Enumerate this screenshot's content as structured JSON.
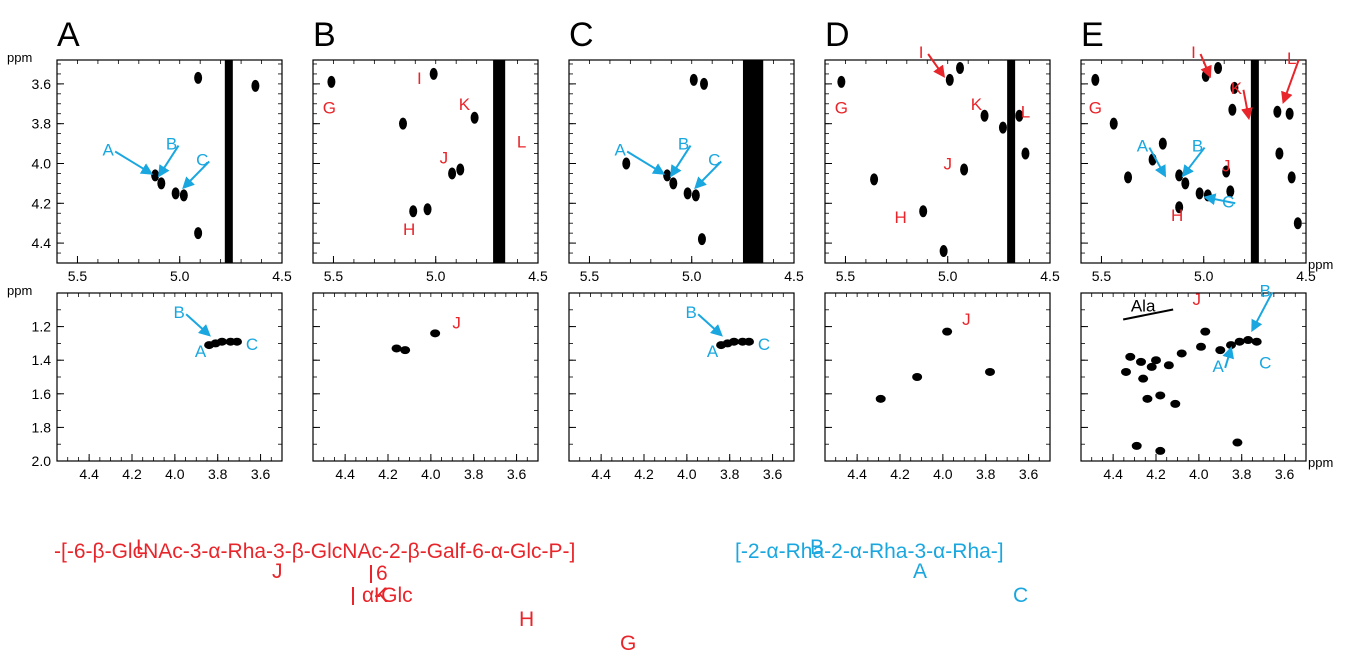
{
  "colors": {
    "red": "#e8252a",
    "blue": "#1aa7e0",
    "ink": "#000000"
  },
  "axis_unit": "ppm",
  "panels": [
    {
      "letter": "A",
      "top": {
        "x_ticks": [
          "5.5",
          "5.0",
          "4.5"
        ],
        "y_ticks": [
          "3.6",
          "3.8",
          "4.0",
          "4.2",
          "4.4"
        ],
        "xlim": [
          5.6,
          4.5
        ],
        "ylim": [
          3.48,
          4.5
        ],
        "cross_peaks": [
          [
            5.12,
            4.06
          ],
          [
            5.09,
            4.1
          ],
          [
            5.02,
            4.15
          ],
          [
            4.98,
            4.16
          ],
          [
            4.91,
            3.57
          ],
          [
            4.91,
            4.35
          ],
          [
            4.63,
            3.61
          ]
        ],
        "ridge_lines": [
          4.76
        ],
        "labels": [
          {
            "text": "A",
            "color": "blue",
            "x": 5.35,
            "y": 3.96,
            "tx": 5.14,
            "ty": 4.05
          },
          {
            "text": "B",
            "color": "blue",
            "x": 5.04,
            "y": 3.93,
            "tx": 5.1,
            "ty": 4.06
          },
          {
            "text": "C",
            "color": "blue",
            "x": 4.89,
            "y": 4.01,
            "tx": 4.98,
            "ty": 4.12
          }
        ]
      },
      "bottom": {
        "x_ticks": [
          "4.4",
          "4.2",
          "4.0",
          "3.8",
          "3.6"
        ],
        "y_ticks": [
          "1.2",
          "1.4",
          "1.6",
          "1.8",
          "2.0"
        ],
        "xlim": [
          4.55,
          3.5
        ],
        "ylim": [
          1.0,
          2.0
        ],
        "cross_peaks": [
          [
            3.84,
            1.31
          ],
          [
            3.81,
            1.3
          ],
          [
            3.78,
            1.29
          ],
          [
            3.74,
            1.29
          ],
          [
            3.71,
            1.29
          ]
        ],
        "labels": [
          {
            "text": "B",
            "color": "blue",
            "x": 3.98,
            "y": 1.15,
            "tx": 3.84,
            "ty": 1.25
          },
          {
            "text": "A",
            "color": "blue",
            "x": 3.88,
            "y": 1.38,
            "tx": null,
            "ty": null
          },
          {
            "text": "C",
            "color": "blue",
            "x": 3.64,
            "y": 1.34,
            "tx": null,
            "ty": null
          }
        ]
      }
    },
    {
      "letter": "B",
      "top": {
        "x_ticks": [
          "5.5",
          "5.0",
          "4.5"
        ],
        "y_ticks": [
          "3.6",
          "3.8",
          "4.0",
          "4.2",
          "4.4"
        ],
        "xlim": [
          5.6,
          4.5
        ],
        "ylim": [
          3.48,
          4.5
        ],
        "cross_peaks": [
          [
            5.51,
            3.59
          ],
          [
            5.01,
            3.55
          ],
          [
            4.81,
            3.77
          ],
          [
            4.92,
            4.05
          ],
          [
            5.11,
            4.24
          ],
          [
            5.16,
            3.8
          ],
          [
            5.04,
            4.23
          ],
          [
            4.88,
            4.03
          ]
        ],
        "ridge_lines": [
          4.7,
          4.68
        ],
        "labels": [
          {
            "text": "G",
            "color": "red",
            "x": 5.52,
            "y": 3.75,
            "tx": null,
            "ty": null
          },
          {
            "text": "I",
            "color": "red",
            "x": 5.08,
            "y": 3.6,
            "tx": null,
            "ty": null
          },
          {
            "text": "K",
            "color": "red",
            "x": 4.86,
            "y": 3.73,
            "tx": null,
            "ty": null
          },
          {
            "text": "L",
            "color": "red",
            "x": 4.58,
            "y": 3.92,
            "tx": null,
            "ty": null
          },
          {
            "text": "J",
            "color": "red",
            "x": 4.96,
            "y": 4.0,
            "tx": null,
            "ty": null
          },
          {
            "text": "H",
            "color": "red",
            "x": 5.13,
            "y": 4.36,
            "tx": null,
            "ty": null
          }
        ]
      },
      "bottom": {
        "x_ticks": [
          "4.4",
          "4.2",
          "4.0",
          "3.8",
          "3.6"
        ],
        "y_ticks": [
          "1.2",
          "1.4",
          "1.6",
          "1.8",
          "2.0"
        ],
        "xlim": [
          4.55,
          3.5
        ],
        "ylim": [
          1.0,
          2.0
        ],
        "cross_peaks": [
          [
            3.98,
            1.24
          ],
          [
            4.16,
            1.33
          ],
          [
            4.12,
            1.34
          ]
        ],
        "labels": [
          {
            "text": "J",
            "color": "red",
            "x": 3.88,
            "y": 1.21,
            "tx": null,
            "ty": null
          }
        ]
      }
    },
    {
      "letter": "C",
      "top": {
        "x_ticks": [
          "5.5",
          "5.0",
          "4.5"
        ],
        "y_ticks": [
          "3.6",
          "3.8",
          "4.0",
          "4.2",
          "4.4"
        ],
        "xlim": [
          5.6,
          4.5
        ],
        "ylim": [
          3.48,
          4.5
        ],
        "cross_peaks": [
          [
            5.12,
            4.06
          ],
          [
            5.09,
            4.1
          ],
          [
            5.02,
            4.15
          ],
          [
            4.98,
            4.16
          ],
          [
            4.99,
            3.58
          ],
          [
            4.94,
            3.6
          ],
          [
            5.32,
            4.0
          ],
          [
            4.95,
            4.38
          ]
        ],
        "ridge_lines": [
          4.73,
          4.7,
          4.67
        ],
        "labels": [
          {
            "text": "A",
            "color": "blue",
            "x": 5.35,
            "y": 3.96,
            "tx": 5.14,
            "ty": 4.05
          },
          {
            "text": "B",
            "color": "blue",
            "x": 5.04,
            "y": 3.93,
            "tx": 5.1,
            "ty": 4.06
          },
          {
            "text": "C",
            "color": "blue",
            "x": 4.89,
            "y": 4.01,
            "tx": 4.98,
            "ty": 4.12
          }
        ]
      },
      "bottom": {
        "x_ticks": [
          "4.4",
          "4.2",
          "4.0",
          "3.8",
          "3.6"
        ],
        "y_ticks": [
          "1.2",
          "1.4",
          "1.6",
          "1.8",
          "2.0"
        ],
        "xlim": [
          4.55,
          3.5
        ],
        "ylim": [
          1.0,
          2.0
        ],
        "cross_peaks": [
          [
            3.84,
            1.31
          ],
          [
            3.81,
            1.3
          ],
          [
            3.78,
            1.29
          ],
          [
            3.74,
            1.29
          ],
          [
            3.71,
            1.29
          ]
        ],
        "labels": [
          {
            "text": "B",
            "color": "blue",
            "x": 3.98,
            "y": 1.15,
            "tx": 3.84,
            "ty": 1.25
          },
          {
            "text": "A",
            "color": "blue",
            "x": 3.88,
            "y": 1.38,
            "tx": null,
            "ty": null
          },
          {
            "text": "C",
            "color": "blue",
            "x": 3.64,
            "y": 1.34,
            "tx": null,
            "ty": null
          }
        ]
      }
    },
    {
      "letter": "D",
      "top": {
        "x_ticks": [
          "5.5",
          "5.0",
          "4.5"
        ],
        "y_ticks": [
          "3.6",
          "3.8",
          "4.0",
          "4.2",
          "4.4"
        ],
        "xlim": [
          5.6,
          4.5
        ],
        "ylim": [
          3.48,
          4.5
        ],
        "cross_peaks": [
          [
            5.52,
            3.59
          ],
          [
            4.99,
            3.58
          ],
          [
            4.94,
            3.52
          ],
          [
            4.82,
            3.76
          ],
          [
            4.65,
            3.76
          ],
          [
            4.73,
            3.82
          ],
          [
            5.36,
            4.08
          ],
          [
            5.12,
            4.24
          ],
          [
            4.92,
            4.03
          ],
          [
            4.62,
            3.95
          ],
          [
            5.02,
            4.44
          ]
        ],
        "ridge_lines": [
          4.69
        ],
        "labels": [
          {
            "text": "G",
            "color": "red",
            "x": 5.52,
            "y": 3.75,
            "tx": null,
            "ty": null
          },
          {
            "text": "I",
            "color": "red",
            "x": 5.13,
            "y": 3.47,
            "tx": 5.02,
            "ty": 3.56
          },
          {
            "text": "K",
            "color": "red",
            "x": 4.86,
            "y": 3.73,
            "tx": null,
            "ty": null
          },
          {
            "text": "L",
            "color": "red",
            "x": 4.62,
            "y": 3.77,
            "tx": null,
            "ty": null
          },
          {
            "text": "J",
            "color": "red",
            "x": 5.0,
            "y": 4.03,
            "tx": null,
            "ty": null
          },
          {
            "text": "H",
            "color": "red",
            "x": 5.23,
            "y": 4.3,
            "tx": null,
            "ty": null
          }
        ]
      },
      "bottom": {
        "x_ticks": [
          "4.4",
          "4.2",
          "4.0",
          "3.8",
          "3.6"
        ],
        "y_ticks": [
          "1.2",
          "1.4",
          "1.6",
          "1.8",
          "2.0"
        ],
        "xlim": [
          4.55,
          3.5
        ],
        "ylim": [
          1.0,
          2.0
        ],
        "cross_peaks": [
          [
            3.98,
            1.23
          ],
          [
            4.29,
            1.63
          ],
          [
            3.78,
            1.47
          ],
          [
            4.12,
            1.5
          ]
        ],
        "labels": [
          {
            "text": "J",
            "color": "red",
            "x": 3.89,
            "y": 1.19,
            "tx": null,
            "ty": null
          }
        ]
      }
    },
    {
      "letter": "E",
      "top": {
        "x_ticks": [
          "5.5",
          "5.0",
          "4.5"
        ],
        "y_ticks": [
          "3.6",
          "3.8",
          "4.0",
          "4.2",
          "4.4"
        ],
        "xlim": [
          5.6,
          4.5
        ],
        "ylim": [
          3.48,
          4.5
        ],
        "cross_peaks": [
          [
            5.53,
            3.58
          ],
          [
            4.99,
            3.56
          ],
          [
            4.93,
            3.52
          ],
          [
            5.12,
            4.06
          ],
          [
            5.09,
            4.1
          ],
          [
            5.02,
            4.15
          ],
          [
            4.98,
            4.16
          ],
          [
            5.37,
            4.07
          ],
          [
            5.25,
            3.98
          ],
          [
            5.12,
            4.22
          ],
          [
            4.89,
            4.04
          ],
          [
            4.85,
            3.62
          ],
          [
            4.86,
            3.73
          ],
          [
            4.64,
            3.74
          ],
          [
            4.58,
            3.75
          ],
          [
            4.63,
            3.95
          ],
          [
            4.57,
            4.07
          ],
          [
            4.54,
            4.3
          ],
          [
            5.2,
            3.9
          ],
          [
            4.87,
            4.14
          ],
          [
            5.44,
            3.8
          ]
        ],
        "ridge_lines": [
          4.75
        ],
        "labels": [
          {
            "text": "G",
            "color": "red",
            "x": 5.53,
            "y": 3.75,
            "tx": null,
            "ty": null
          },
          {
            "text": "I",
            "color": "red",
            "x": 5.05,
            "y": 3.47,
            "tx": 4.97,
            "ty": 3.56
          },
          {
            "text": "K",
            "color": "red",
            "x": 4.84,
            "y": 3.65,
            "tx": 4.78,
            "ty": 3.77
          },
          {
            "text": "L",
            "color": "red",
            "x": 4.57,
            "y": 3.5,
            "tx": 4.61,
            "ty": 3.69
          },
          {
            "text": "J",
            "color": "red",
            "x": 4.89,
            "y": 4.04,
            "tx": null,
            "ty": null
          },
          {
            "text": "H",
            "color": "red",
            "x": 5.13,
            "y": 4.29,
            "tx": null,
            "ty": null
          },
          {
            "text": "A",
            "color": "blue",
            "x": 5.3,
            "y": 3.94,
            "tx": 5.19,
            "ty": 4.06
          },
          {
            "text": "B",
            "color": "blue",
            "x": 5.03,
            "y": 3.94,
            "tx": 5.1,
            "ty": 4.06
          },
          {
            "text": "C",
            "color": "blue",
            "x": 4.88,
            "y": 4.22,
            "tx": 4.99,
            "ty": 4.17
          }
        ]
      },
      "bottom": {
        "x_ticks": [
          "4.4",
          "4.2",
          "4.0",
          "3.8",
          "3.6"
        ],
        "y_ticks": [
          "1.2",
          "1.4",
          "1.6",
          "1.8",
          "2.0"
        ],
        "xlim": [
          4.55,
          3.5
        ],
        "ylim": [
          1.0,
          2.0
        ],
        "cross_peaks": [
          [
            4.32,
            1.38
          ],
          [
            4.27,
            1.41
          ],
          [
            4.22,
            1.44
          ],
          [
            4.34,
            1.47
          ],
          [
            4.26,
            1.51
          ],
          [
            4.2,
            1.4
          ],
          [
            4.24,
            1.63
          ],
          [
            4.18,
            1.61
          ],
          [
            4.14,
            1.43
          ],
          [
            4.08,
            1.36
          ],
          [
            3.97,
            1.23
          ],
          [
            3.9,
            1.34
          ],
          [
            3.85,
            1.31
          ],
          [
            3.81,
            1.29
          ],
          [
            3.77,
            1.28
          ],
          [
            3.73,
            1.29
          ],
          [
            4.29,
            1.91
          ],
          [
            3.82,
            1.89
          ],
          [
            4.11,
            1.66
          ],
          [
            3.99,
            1.32
          ],
          [
            4.18,
            1.94
          ]
        ],
        "labels": [
          {
            "text": "J",
            "color": "red",
            "x": 4.01,
            "y": 1.07,
            "tx": null,
            "ty": null
          },
          {
            "text": "B",
            "color": "blue",
            "x": 3.69,
            "y": 1.02,
            "tx": 3.75,
            "ty": 1.22
          },
          {
            "text": "A",
            "color": "blue",
            "x": 3.91,
            "y": 1.47,
            "tx": 3.85,
            "ty": 1.33
          },
          {
            "text": "C",
            "color": "blue",
            "x": 3.69,
            "y": 1.45,
            "tx": null,
            "ty": null
          },
          {
            "text": "Ala",
            "color": "black",
            "x": 4.26,
            "y": 1.11,
            "tx": null,
            "ty": null
          }
        ]
      }
    }
  ],
  "structure": {
    "red_letters": [
      "L",
      "J",
      "K",
      "H",
      "G"
    ],
    "red_chain": "-[-6-β-GlcNAc-3-α-Rha-3-β-GlcNAc-2-β-Galf-6-α-Glc-P-]",
    "branch_pos": "6",
    "branch_sugar": "α-Glc",
    "blue_letters": [
      "B",
      "A",
      "C"
    ],
    "blue_chain": "[-2-α-Rha-2-α-Rha-3-α-Rha-]"
  },
  "chart_data": [
    {
      "type": "scatter",
      "panel": "A",
      "region": "anomeric",
      "xlabel": "",
      "ylabel": "ppm",
      "xlim": [
        5.6,
        4.5
      ],
      "ylim": [
        4.5,
        3.48
      ]
    },
    {
      "type": "scatter",
      "panel": "A",
      "region": "methyl",
      "xlabel": "",
      "ylabel": "ppm",
      "xlim": [
        4.55,
        3.5
      ],
      "ylim": [
        2.0,
        1.0
      ]
    },
    {
      "type": "scatter",
      "panel": "B",
      "region": "anomeric",
      "xlim": [
        5.6,
        4.5
      ],
      "ylim": [
        4.5,
        3.48
      ]
    },
    {
      "type": "scatter",
      "panel": "B",
      "region": "methyl",
      "xlim": [
        4.55,
        3.5
      ],
      "ylim": [
        2.0,
        1.0
      ]
    },
    {
      "type": "scatter",
      "panel": "C",
      "region": "anomeric",
      "xlim": [
        5.6,
        4.5
      ],
      "ylim": [
        4.5,
        3.48
      ]
    },
    {
      "type": "scatter",
      "panel": "C",
      "region": "methyl",
      "xlim": [
        4.55,
        3.5
      ],
      "ylim": [
        2.0,
        1.0
      ]
    },
    {
      "type": "scatter",
      "panel": "D",
      "region": "anomeric",
      "xlim": [
        5.6,
        4.5
      ],
      "ylim": [
        4.5,
        3.48
      ]
    },
    {
      "type": "scatter",
      "panel": "D",
      "region": "methyl",
      "xlim": [
        4.55,
        3.5
      ],
      "ylim": [
        2.0,
        1.0
      ]
    },
    {
      "type": "scatter",
      "panel": "E",
      "region": "anomeric",
      "xlabel": "ppm",
      "xlim": [
        5.6,
        4.5
      ],
      "ylim": [
        4.5,
        3.48
      ]
    },
    {
      "type": "scatter",
      "panel": "E",
      "region": "methyl",
      "xlabel": "ppm",
      "xlim": [
        4.55,
        3.5
      ],
      "ylim": [
        2.0,
        1.0
      ]
    }
  ]
}
